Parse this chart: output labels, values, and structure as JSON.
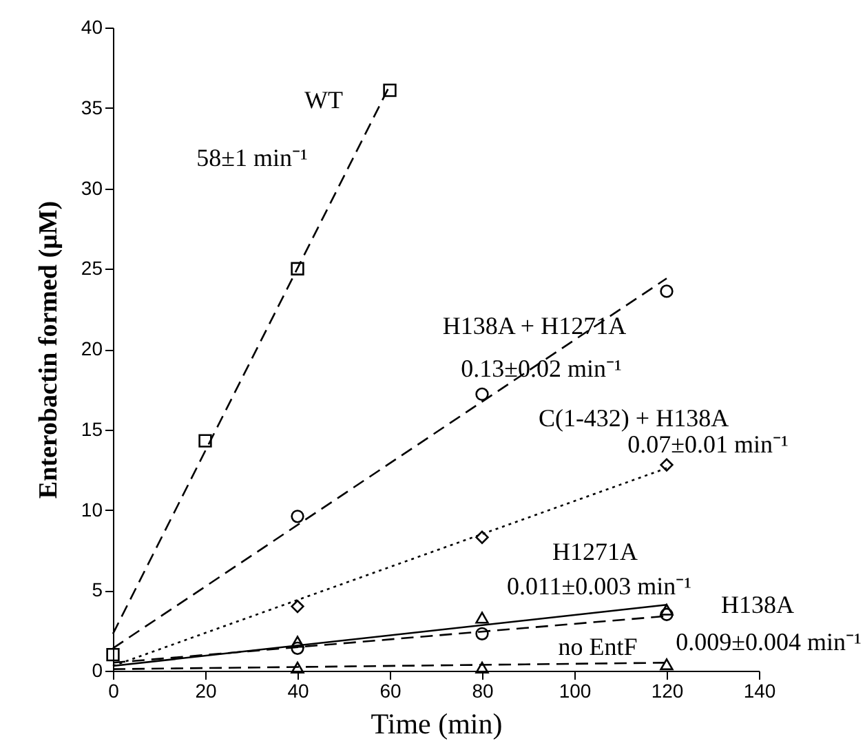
{
  "chart_data": {
    "type": "scatter",
    "xlabel": "Time (min)",
    "ylabel": "Enterobactin formed (μM)",
    "xlim": [
      0,
      140
    ],
    "xticks": [
      0,
      20,
      40,
      60,
      80,
      100,
      120,
      140
    ],
    "ylim": [
      0,
      40
    ],
    "yticks": [
      0,
      5,
      10,
      15,
      20,
      25,
      30,
      35,
      40
    ],
    "annotations": [
      "58±1 min⁻¹",
      "0.13±0.02 min⁻¹",
      "0.07±0.01 min⁻¹",
      "0.011±0.003 min⁻¹",
      "0.009±0.004 min⁻¹"
    ],
    "series": [
      {
        "name": "WT",
        "color": "#000000",
        "marker": "square",
        "x": [
          0,
          20,
          40,
          60
        ],
        "values": [
          1.0,
          14.3,
          25.0,
          36.1
        ]
      },
      {
        "name": "H138A + H1271A",
        "color": "#000000",
        "marker": "circle",
        "x": [
          40,
          80,
          120
        ],
        "values": [
          9.6,
          17.2,
          23.6
        ]
      },
      {
        "name": "C(1-432) + H138A",
        "color": "#000000",
        "marker": "diamond",
        "x": [
          40,
          80,
          120
        ],
        "values": [
          4.0,
          8.3,
          12.8
        ]
      },
      {
        "name": "H1271A",
        "color": "#000000",
        "marker": "triangle",
        "x": [
          40,
          80,
          120
        ],
        "values": [
          1.8,
          3.3,
          3.8
        ]
      },
      {
        "name": "H138A",
        "color": "#000000",
        "marker": "circle",
        "x": [
          40,
          80,
          120
        ],
        "values": [
          1.4,
          2.3,
          3.5
        ]
      },
      {
        "name": "no EntF",
        "color": "#000000",
        "marker": "triangle",
        "x": [
          40,
          80,
          120
        ],
        "values": [
          0.2,
          0.2,
          0.4
        ]
      },
      {
        "type": "line",
        "color": "#000000",
        "line_style": "dashed",
        "x": [
          0,
          60
        ],
        "values": [
          2.3,
          36.4
        ]
      },
      {
        "type": "line",
        "color": "#000000",
        "line_style": "dashed",
        "x": [
          0,
          120
        ],
        "values": [
          1.4,
          24.4
        ]
      },
      {
        "type": "line",
        "color": "#000000",
        "line_style": "dotted",
        "x": [
          0,
          120
        ],
        "values": [
          0.3,
          12.6
        ]
      },
      {
        "type": "line",
        "color": "#000000",
        "line_style": "solid",
        "x": [
          0,
          120
        ],
        "values": [
          0.3,
          4.1
        ]
      },
      {
        "type": "line",
        "color": "#000000",
        "line_style": "dashed",
        "x": [
          0,
          120
        ],
        "values": [
          0.5,
          3.4
        ]
      },
      {
        "type": "line",
        "color": "#000000",
        "line_style": "dashed",
        "x": [
          0,
          120
        ],
        "values": [
          0.1,
          0.5
        ]
      }
    ]
  }
}
